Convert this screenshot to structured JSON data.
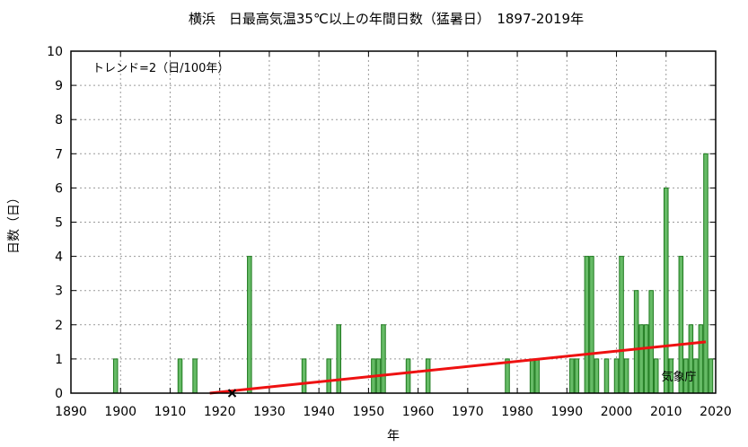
{
  "chart_data": {
    "type": "bar",
    "title": "横浜　日最高気温35℃以上の年間日数（猛暑日）　1897-2019年",
    "xlabel": "年",
    "ylabel": "日数（日）",
    "xlim": [
      1890,
      2020
    ],
    "ylim": [
      0,
      10
    ],
    "xticks": [
      1890,
      1900,
      1910,
      1920,
      1930,
      1940,
      1950,
      1960,
      1970,
      1980,
      1990,
      2000,
      2010,
      2020
    ],
    "yticks": [
      0,
      1,
      2,
      3,
      4,
      5,
      6,
      7,
      8,
      9,
      10
    ],
    "grid": true,
    "trend_text": "トレンド=2（日/100年）",
    "source": "気象庁",
    "bar_color": "#66bb66",
    "trend_color": "#ee1111",
    "series": [
      {
        "x": [
          1899,
          1912,
          1915,
          1926,
          1937,
          1942,
          1944,
          1951,
          1952,
          1953,
          1958,
          1962,
          1978,
          1983,
          1984,
          1991,
          1992,
          1994,
          1995,
          1996,
          1998,
          2000,
          2001,
          2002,
          2004,
          2005,
          2006,
          2007,
          2008,
          2010,
          2011,
          2013,
          2014,
          2015,
          2016,
          2017,
          2018,
          2019
        ],
        "values": [
          1,
          1,
          1,
          4,
          1,
          1,
          2,
          1,
          1,
          2,
          1,
          1,
          1,
          1,
          1,
          1,
          1,
          4,
          4,
          1,
          1,
          1,
          4,
          1,
          3,
          2,
          2,
          3,
          1,
          6,
          1,
          4,
          1,
          2,
          1,
          2,
          7,
          1
        ]
      }
    ],
    "trend_line": {
      "x": [
        1918,
        2018
      ],
      "y": [
        0,
        1.5
      ]
    },
    "marker": {
      "x": 1922.5,
      "y": 0,
      "symbol": "×"
    }
  }
}
